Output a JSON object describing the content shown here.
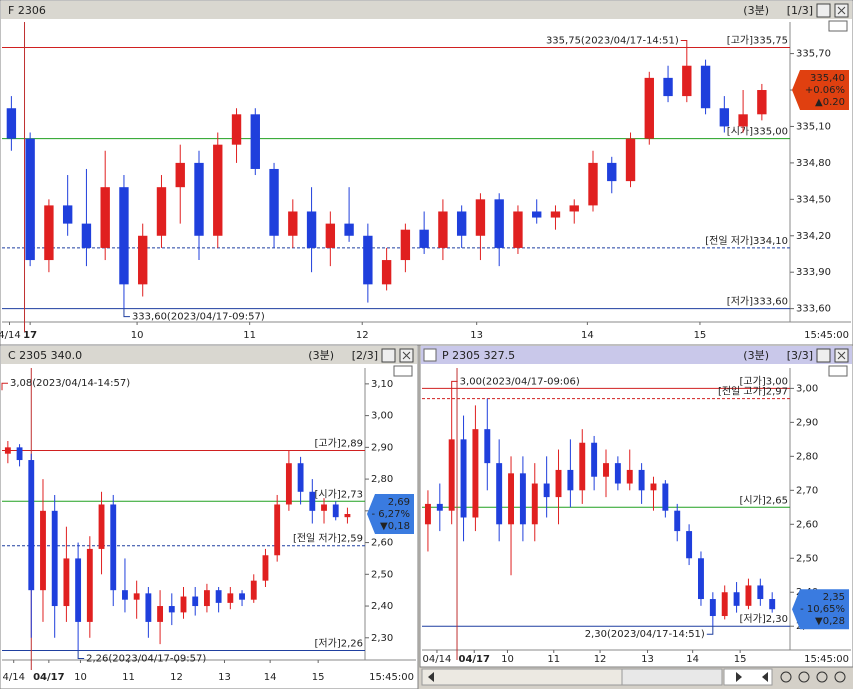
{
  "panels": [
    {
      "period": "(3분)",
      "page": "[1/3]",
      "chart_data": {
        "type": "candlestick",
        "title": "F 2306",
        "up_color": "#e02020",
        "down_color": "#1f3fdc",
        "xlim": [
          -0.5,
          41.5
        ],
        "ylim": [
          333.49,
          335.96
        ],
        "xticks": [
          {
            "value": -0.1,
            "label": "4/14"
          },
          {
            "value": 1,
            "label": "17",
            "bold": true
          },
          {
            "value": 6.7,
            "label": "10"
          },
          {
            "value": 12.7,
            "label": "11"
          },
          {
            "value": 18.7,
            "label": "12"
          },
          {
            "value": 24.8,
            "label": "13"
          },
          {
            "value": 30.7,
            "label": "14"
          },
          {
            "value": 36.7,
            "label": "15"
          }
        ],
        "time_label": "15:45:00",
        "yticks": [
          {
            "value": 335.7,
            "label": "335,70"
          },
          {
            "value": 335.4,
            "label": "335,40"
          },
          {
            "value": 335.1,
            "label": "335,10"
          },
          {
            "value": 334.8,
            "label": "334,80"
          },
          {
            "value": 334.5,
            "label": "334,50"
          },
          {
            "value": 334.2,
            "label": "334,20"
          },
          {
            "value": 333.9,
            "label": "333,90"
          },
          {
            "value": 333.6,
            "label": "333,60"
          }
        ],
        "crosshair_x": 0.7,
        "ref_lines": [
          {
            "value": 335.75,
            "label": "[고가]335,75",
            "color": "#d02020",
            "dashed": false
          },
          {
            "value": 335.0,
            "label": "[시가]335,00",
            "color": "#20a020",
            "dashed": false
          },
          {
            "value": 334.1,
            "label": "[전일 저가]334,10",
            "color": "#1f3fa0",
            "dashed": true
          },
          {
            "value": 333.6,
            "label": "[저가]333,60",
            "color": "#1f3fa0",
            "dashed": false
          }
        ],
        "annotations": [
          {
            "x": 36,
            "value": 335.75,
            "label": "335,75(2023/04/17-14:51)",
            "color": "#d02020"
          },
          {
            "x": 6,
            "value": 333.6,
            "label": "333,60(2023/04/17-09:57)",
            "color": "#1f3fa0"
          }
        ],
        "price_box": {
          "color": "#e04010",
          "price": {
            "value": 335.4,
            "label": "335,40"
          },
          "change_pct": {
            "value": 0.06,
            "label": "+0.06%"
          },
          "change": {
            "value": 0.2,
            "label": "▲0.20"
          }
        },
        "candles": [
          [
            335.25,
            335.35,
            334.9,
            335.0
          ],
          [
            335.0,
            335.05,
            333.95,
            334.0
          ],
          [
            334.0,
            334.5,
            333.9,
            334.45
          ],
          [
            334.45,
            334.7,
            334.2,
            334.3
          ],
          [
            334.3,
            334.75,
            333.95,
            334.1
          ],
          [
            334.1,
            334.9,
            334.0,
            334.6
          ],
          [
            334.6,
            334.7,
            333.6,
            333.8
          ],
          [
            333.8,
            334.3,
            333.7,
            334.2
          ],
          [
            334.2,
            334.7,
            334.1,
            334.6
          ],
          [
            334.6,
            334.95,
            334.3,
            334.8
          ],
          [
            334.8,
            334.9,
            334.0,
            334.2
          ],
          [
            334.2,
            335.05,
            334.1,
            334.95
          ],
          [
            334.95,
            335.25,
            334.8,
            335.2
          ],
          [
            335.2,
            335.25,
            334.7,
            334.75
          ],
          [
            334.75,
            334.8,
            334.1,
            334.2
          ],
          [
            334.2,
            334.5,
            334.1,
            334.4
          ],
          [
            334.4,
            334.6,
            333.9,
            334.1
          ],
          [
            334.1,
            334.4,
            333.95,
            334.3
          ],
          [
            334.3,
            334.6,
            334.15,
            334.2
          ],
          [
            334.2,
            334.3,
            333.65,
            333.8
          ],
          [
            333.8,
            334.1,
            333.75,
            334.0
          ],
          [
            334.0,
            334.3,
            333.9,
            334.25
          ],
          [
            334.25,
            334.4,
            334.05,
            334.1
          ],
          [
            334.1,
            334.5,
            334.0,
            334.4
          ],
          [
            334.4,
            334.45,
            334.1,
            334.2
          ],
          [
            334.2,
            334.55,
            334.0,
            334.5
          ],
          [
            334.5,
            334.55,
            333.95,
            334.1
          ],
          [
            334.1,
            334.45,
            334.05,
            334.4
          ],
          [
            334.4,
            334.5,
            334.3,
            334.35
          ],
          [
            334.35,
            334.45,
            334.25,
            334.4
          ],
          [
            334.4,
            334.5,
            334.3,
            334.45
          ],
          [
            334.45,
            334.9,
            334.4,
            334.8
          ],
          [
            334.8,
            334.85,
            334.55,
            334.65
          ],
          [
            334.65,
            335.05,
            334.6,
            335.0
          ],
          [
            335.0,
            335.55,
            334.95,
            335.5
          ],
          [
            335.5,
            335.6,
            335.3,
            335.35
          ],
          [
            335.35,
            335.75,
            335.3,
            335.6
          ],
          [
            335.6,
            335.65,
            335.2,
            335.25
          ],
          [
            335.25,
            335.35,
            335.05,
            335.1
          ],
          [
            335.1,
            335.4,
            335.05,
            335.2
          ],
          [
            335.2,
            335.45,
            335.15,
            335.4
          ]
        ]
      }
    },
    {
      "period": "(3분)",
      "page": "[2/3]",
      "chart_data": {
        "type": "candlestick",
        "title": "C 2305 340.0",
        "up_color": "#e02020",
        "down_color": "#1f3fdc",
        "xlim": [
          -0.5,
          30.5
        ],
        "ylim": [
          2.23,
          3.15
        ],
        "xticks": [
          {
            "value": 0.5,
            "label": "4/14"
          },
          {
            "value": 3.5,
            "label": "04/17",
            "bold": true
          },
          {
            "value": 6.2,
            "label": "10"
          },
          {
            "value": 10.3,
            "label": "11"
          },
          {
            "value": 14.4,
            "label": "12"
          },
          {
            "value": 18.5,
            "label": "13"
          },
          {
            "value": 22.4,
            "label": "14"
          },
          {
            "value": 26.5,
            "label": "15"
          }
        ],
        "time_label": "15:45:00",
        "yticks": [
          {
            "value": 3.1,
            "label": "3,10"
          },
          {
            "value": 3.0,
            "label": "3,00"
          },
          {
            "value": 2.9,
            "label": "2,90"
          },
          {
            "value": 2.8,
            "label": "2,80"
          },
          {
            "value": 2.7,
            "label": "2,70"
          },
          {
            "value": 2.6,
            "label": "2,60"
          },
          {
            "value": 2.5,
            "label": "2,50"
          },
          {
            "value": 2.4,
            "label": "2,40"
          },
          {
            "value": 2.3,
            "label": "2,30"
          }
        ],
        "crosshair_x": 2,
        "ref_lines": [
          {
            "value": 2.89,
            "label": "[고가]2,89",
            "color": "#d02020",
            "dashed": false
          },
          {
            "value": 2.73,
            "label": "[시가]2,73",
            "color": "#20a020",
            "dashed": false
          },
          {
            "value": 2.59,
            "label": "[전일 저가]2,59",
            "color": "#1f3fa0",
            "dashed": true
          },
          {
            "value": 2.26,
            "label": "[저가]2,26",
            "color": "#1f3fa0",
            "dashed": false
          }
        ],
        "annotations": [
          {
            "x": -0.5,
            "value": 3.08,
            "label": "3,08(2023/04/14-14:57)",
            "color": "#d02020"
          },
          {
            "x": 6,
            "value": 2.26,
            "label": "2,26(2023/04/17-09:57)",
            "color": "#1f3fa0"
          }
        ],
        "price_box": {
          "color": "#3a7be0",
          "price": {
            "value": 2.69,
            "label": "2,69"
          },
          "change_pct": {
            "value": -6.27,
            "label": "- 6,27%"
          },
          "change": {
            "value": -0.18,
            "label": "▼0,18"
          }
        },
        "candles": [
          [
            2.88,
            2.92,
            2.85,
            2.9
          ],
          [
            2.9,
            2.91,
            2.84,
            2.86
          ],
          [
            2.86,
            2.88,
            2.3,
            2.45
          ],
          [
            2.45,
            2.8,
            2.35,
            2.7
          ],
          [
            2.7,
            2.75,
            2.3,
            2.4
          ],
          [
            2.4,
            2.65,
            2.35,
            2.55
          ],
          [
            2.55,
            2.6,
            2.26,
            2.35
          ],
          [
            2.35,
            2.62,
            2.3,
            2.58
          ],
          [
            2.58,
            2.76,
            2.5,
            2.72
          ],
          [
            2.72,
            2.75,
            2.4,
            2.45
          ],
          [
            2.45,
            2.55,
            2.38,
            2.42
          ],
          [
            2.42,
            2.48,
            2.36,
            2.44
          ],
          [
            2.44,
            2.46,
            2.3,
            2.35
          ],
          [
            2.35,
            2.45,
            2.28,
            2.4
          ],
          [
            2.4,
            2.44,
            2.34,
            2.38
          ],
          [
            2.38,
            2.46,
            2.36,
            2.43
          ],
          [
            2.43,
            2.46,
            2.37,
            2.4
          ],
          [
            2.4,
            2.47,
            2.38,
            2.45
          ],
          [
            2.45,
            2.46,
            2.38,
            2.41
          ],
          [
            2.41,
            2.46,
            2.39,
            2.44
          ],
          [
            2.44,
            2.45,
            2.4,
            2.42
          ],
          [
            2.42,
            2.5,
            2.41,
            2.48
          ],
          [
            2.48,
            2.58,
            2.46,
            2.56
          ],
          [
            2.56,
            2.75,
            2.54,
            2.72
          ],
          [
            2.72,
            2.89,
            2.7,
            2.85
          ],
          [
            2.85,
            2.87,
            2.72,
            2.76
          ],
          [
            2.76,
            2.8,
            2.66,
            2.7
          ],
          [
            2.7,
            2.74,
            2.66,
            2.72
          ],
          [
            2.72,
            2.73,
            2.67,
            2.68
          ],
          [
            2.68,
            2.71,
            2.66,
            2.69
          ]
        ]
      }
    },
    {
      "period": "(3분)",
      "page": "[3/3]",
      "chart_data": {
        "type": "candlestick",
        "title": "P 2305 327.5",
        "up_color": "#e02020",
        "down_color": "#1f3fdc",
        "xlim": [
          -0.5,
          30.5
        ],
        "ylim": [
          2.23,
          3.06
        ],
        "xticks": [
          {
            "value": 0.76,
            "label": "04/14"
          },
          {
            "value": 3.9,
            "label": "04/17",
            "bold": true
          },
          {
            "value": 6.7,
            "label": "10"
          },
          {
            "value": 10.6,
            "label": "11"
          },
          {
            "value": 14.5,
            "label": "12"
          },
          {
            "value": 18.5,
            "label": "13"
          },
          {
            "value": 22.3,
            "label": "14"
          },
          {
            "value": 26.3,
            "label": "15"
          }
        ],
        "time_label": "15:45:00",
        "yticks": [
          {
            "value": 3.0,
            "label": "3,00"
          },
          {
            "value": 2.9,
            "label": "2,90"
          },
          {
            "value": 2.8,
            "label": "2,80"
          },
          {
            "value": 2.7,
            "label": "2,70"
          },
          {
            "value": 2.6,
            "label": "2,60"
          },
          {
            "value": 2.5,
            "label": "2,50"
          },
          {
            "value": 2.4,
            "label": "2,40"
          },
          {
            "value": 2.3,
            "label": "2,30"
          }
        ],
        "crosshair_x": 2.45,
        "ref_lines": [
          {
            "value": 3.0,
            "label": "[고가]3,00",
            "color": "#d02020",
            "dashed": false
          },
          {
            "value": 2.97,
            "label": "[전일 고가]2,97",
            "color": "#d02020",
            "dashed": true
          },
          {
            "value": 2.65,
            "label": "[시가]2,65",
            "color": "#20a020",
            "dashed": false
          },
          {
            "value": 2.3,
            "label": "[저가]2,30",
            "color": "#1f3fa0",
            "dashed": false
          }
        ],
        "annotations": [
          {
            "x": 2,
            "value": 3.0,
            "label": "3,00(2023/04/17-09:06)",
            "color": "#d02020"
          },
          {
            "x": 24,
            "value": 2.3,
            "label": "2,30(2023/04/17-14:51)",
            "color": "#1f3fa0"
          }
        ],
        "price_box": {
          "color": "#3a7be0",
          "price": {
            "value": 2.35,
            "label": "2,35"
          },
          "change_pct": {
            "value": -10.65,
            "label": "- 10,65%"
          },
          "change": {
            "value": -0.28,
            "label": "▼0,28"
          }
        },
        "candles": [
          [
            2.6,
            2.7,
            2.52,
            2.66
          ],
          [
            2.66,
            2.72,
            2.58,
            2.64
          ],
          [
            2.64,
            3.0,
            2.6,
            2.85
          ],
          [
            2.85,
            2.92,
            2.55,
            2.62
          ],
          [
            2.62,
            2.95,
            2.58,
            2.88
          ],
          [
            2.88,
            2.97,
            2.7,
            2.78
          ],
          [
            2.78,
            2.85,
            2.55,
            2.6
          ],
          [
            2.6,
            2.8,
            2.45,
            2.75
          ],
          [
            2.75,
            2.8,
            2.55,
            2.6
          ],
          [
            2.6,
            2.78,
            2.55,
            2.72
          ],
          [
            2.72,
            2.8,
            2.62,
            2.68
          ],
          [
            2.68,
            2.82,
            2.6,
            2.76
          ],
          [
            2.76,
            2.85,
            2.65,
            2.7
          ],
          [
            2.7,
            2.88,
            2.66,
            2.84
          ],
          [
            2.84,
            2.86,
            2.7,
            2.74
          ],
          [
            2.74,
            2.82,
            2.68,
            2.78
          ],
          [
            2.78,
            2.8,
            2.7,
            2.72
          ],
          [
            2.72,
            2.82,
            2.7,
            2.76
          ],
          [
            2.76,
            2.78,
            2.66,
            2.7
          ],
          [
            2.7,
            2.74,
            2.64,
            2.72
          ],
          [
            2.72,
            2.73,
            2.62,
            2.64
          ],
          [
            2.64,
            2.66,
            2.55,
            2.58
          ],
          [
            2.58,
            2.6,
            2.48,
            2.5
          ],
          [
            2.5,
            2.52,
            2.36,
            2.38
          ],
          [
            2.38,
            2.4,
            2.3,
            2.33
          ],
          [
            2.33,
            2.42,
            2.32,
            2.4
          ],
          [
            2.4,
            2.43,
            2.34,
            2.36
          ],
          [
            2.36,
            2.44,
            2.35,
            2.42
          ],
          [
            2.42,
            2.44,
            2.36,
            2.38
          ],
          [
            2.38,
            2.4,
            2.34,
            2.35
          ]
        ]
      }
    }
  ]
}
